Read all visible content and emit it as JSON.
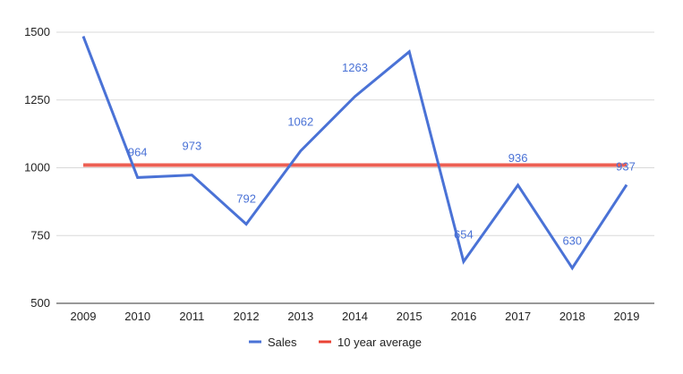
{
  "chart_data": {
    "type": "line",
    "categories": [
      "2009",
      "2010",
      "2011",
      "2012",
      "2013",
      "2014",
      "2015",
      "2016",
      "2017",
      "2018",
      "2019"
    ],
    "series": [
      {
        "name": "Sales",
        "color": "#4a72d6",
        "values": [
          1485,
          964,
          973,
          792,
          1062,
          1263,
          1428,
          654,
          936,
          630,
          937
        ],
        "data_labels": [
          "",
          "964",
          "973",
          "792",
          "1062",
          "1263",
          "",
          "654",
          "936",
          "630",
          "937"
        ]
      },
      {
        "name": "10 year average",
        "color": "#ea4335",
        "values": [
          1010,
          1010,
          1010,
          1010,
          1010,
          1010,
          1010,
          1010,
          1010,
          1010,
          1010
        ]
      }
    ],
    "ylim": [
      500,
      1500
    ],
    "yticks": [
      "500",
      "750",
      "1000",
      "1250",
      "1500"
    ],
    "grid": true,
    "legend_position": "bottom"
  }
}
